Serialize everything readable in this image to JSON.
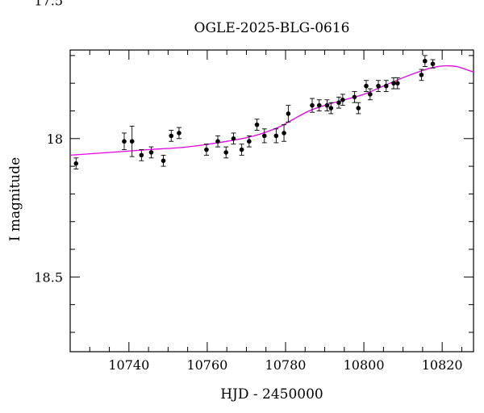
{
  "chart_data": {
    "type": "scatter",
    "title": "OGLE-2025-BLG-0616",
    "xlabel": "HJD - 2450000",
    "ylabel": "I magnitude",
    "xlim": [
      10725,
      10828
    ],
    "ylim": [
      18.77,
      17.68
    ],
    "y_inverted": true,
    "x_ticks": [
      10740,
      10760,
      10780,
      10800,
      10820
    ],
    "x_tick_labels": [
      "10740",
      "10760",
      "10780",
      "10800",
      "10820"
    ],
    "y_ticks": [
      17.5,
      18.0,
      18.5
    ],
    "y_tick_labels": [
      "17.5",
      "18",
      "18.5"
    ],
    "x_minor_step": 5,
    "y_minor_step": 0.1,
    "grid": false,
    "colors": {
      "points": "#000000",
      "model": "#e600e6",
      "axes": "#000000"
    },
    "points": [
      {
        "x": 10726.5,
        "y": 18.09,
        "err": 0.02
      },
      {
        "x": 10738.8,
        "y": 18.01,
        "err": 0.03
      },
      {
        "x": 10740.8,
        "y": 18.01,
        "err": 0.055
      },
      {
        "x": 10743.2,
        "y": 18.06,
        "err": 0.02
      },
      {
        "x": 10745.7,
        "y": 18.05,
        "err": 0.02
      },
      {
        "x": 10748.8,
        "y": 18.08,
        "err": 0.02
      },
      {
        "x": 10750.8,
        "y": 17.99,
        "err": 0.02
      },
      {
        "x": 10752.8,
        "y": 17.98,
        "err": 0.02
      },
      {
        "x": 10759.8,
        "y": 18.04,
        "err": 0.02
      },
      {
        "x": 10762.7,
        "y": 18.01,
        "err": 0.02
      },
      {
        "x": 10764.8,
        "y": 18.05,
        "err": 0.02
      },
      {
        "x": 10766.7,
        "y": 18.0,
        "err": 0.02
      },
      {
        "x": 10768.8,
        "y": 18.04,
        "err": 0.02
      },
      {
        "x": 10770.7,
        "y": 18.01,
        "err": 0.02
      },
      {
        "x": 10772.7,
        "y": 17.95,
        "err": 0.02
      },
      {
        "x": 10774.6,
        "y": 17.99,
        "err": 0.025
      },
      {
        "x": 10777.6,
        "y": 17.99,
        "err": 0.025
      },
      {
        "x": 10779.6,
        "y": 17.98,
        "err": 0.03
      },
      {
        "x": 10780.7,
        "y": 17.91,
        "err": 0.03
      },
      {
        "x": 10786.8,
        "y": 17.88,
        "err": 0.025
      },
      {
        "x": 10788.6,
        "y": 17.88,
        "err": 0.02
      },
      {
        "x": 10790.6,
        "y": 17.88,
        "err": 0.02
      },
      {
        "x": 10791.6,
        "y": 17.89,
        "err": 0.02
      },
      {
        "x": 10793.6,
        "y": 17.87,
        "err": 0.02
      },
      {
        "x": 10794.6,
        "y": 17.86,
        "err": 0.02
      },
      {
        "x": 10797.6,
        "y": 17.85,
        "err": 0.02
      },
      {
        "x": 10798.6,
        "y": 17.89,
        "err": 0.02
      },
      {
        "x": 10800.6,
        "y": 17.81,
        "err": 0.02
      },
      {
        "x": 10801.6,
        "y": 17.84,
        "err": 0.02
      },
      {
        "x": 10803.7,
        "y": 17.81,
        "err": 0.02
      },
      {
        "x": 10805.7,
        "y": 17.81,
        "err": 0.02
      },
      {
        "x": 10807.6,
        "y": 17.8,
        "err": 0.02
      },
      {
        "x": 10808.6,
        "y": 17.8,
        "err": 0.02
      },
      {
        "x": 10814.7,
        "y": 17.77,
        "err": 0.02
      },
      {
        "x": 10815.6,
        "y": 17.72,
        "err": 0.02
      },
      {
        "x": 10817.6,
        "y": 17.73,
        "err": 0.015
      }
    ],
    "model_curve": {
      "x": [
        10725,
        10735,
        10745,
        10755,
        10765,
        10772,
        10778,
        10782,
        10786,
        10790,
        10795,
        10800,
        10805,
        10810,
        10815,
        10818,
        10821,
        10824,
        10828
      ],
      "y": [
        18.06,
        18.05,
        18.04,
        18.03,
        18.01,
        17.99,
        17.96,
        17.93,
        17.9,
        17.88,
        17.86,
        17.84,
        17.81,
        17.78,
        17.754,
        17.742,
        17.737,
        17.741,
        17.76
      ]
    }
  }
}
